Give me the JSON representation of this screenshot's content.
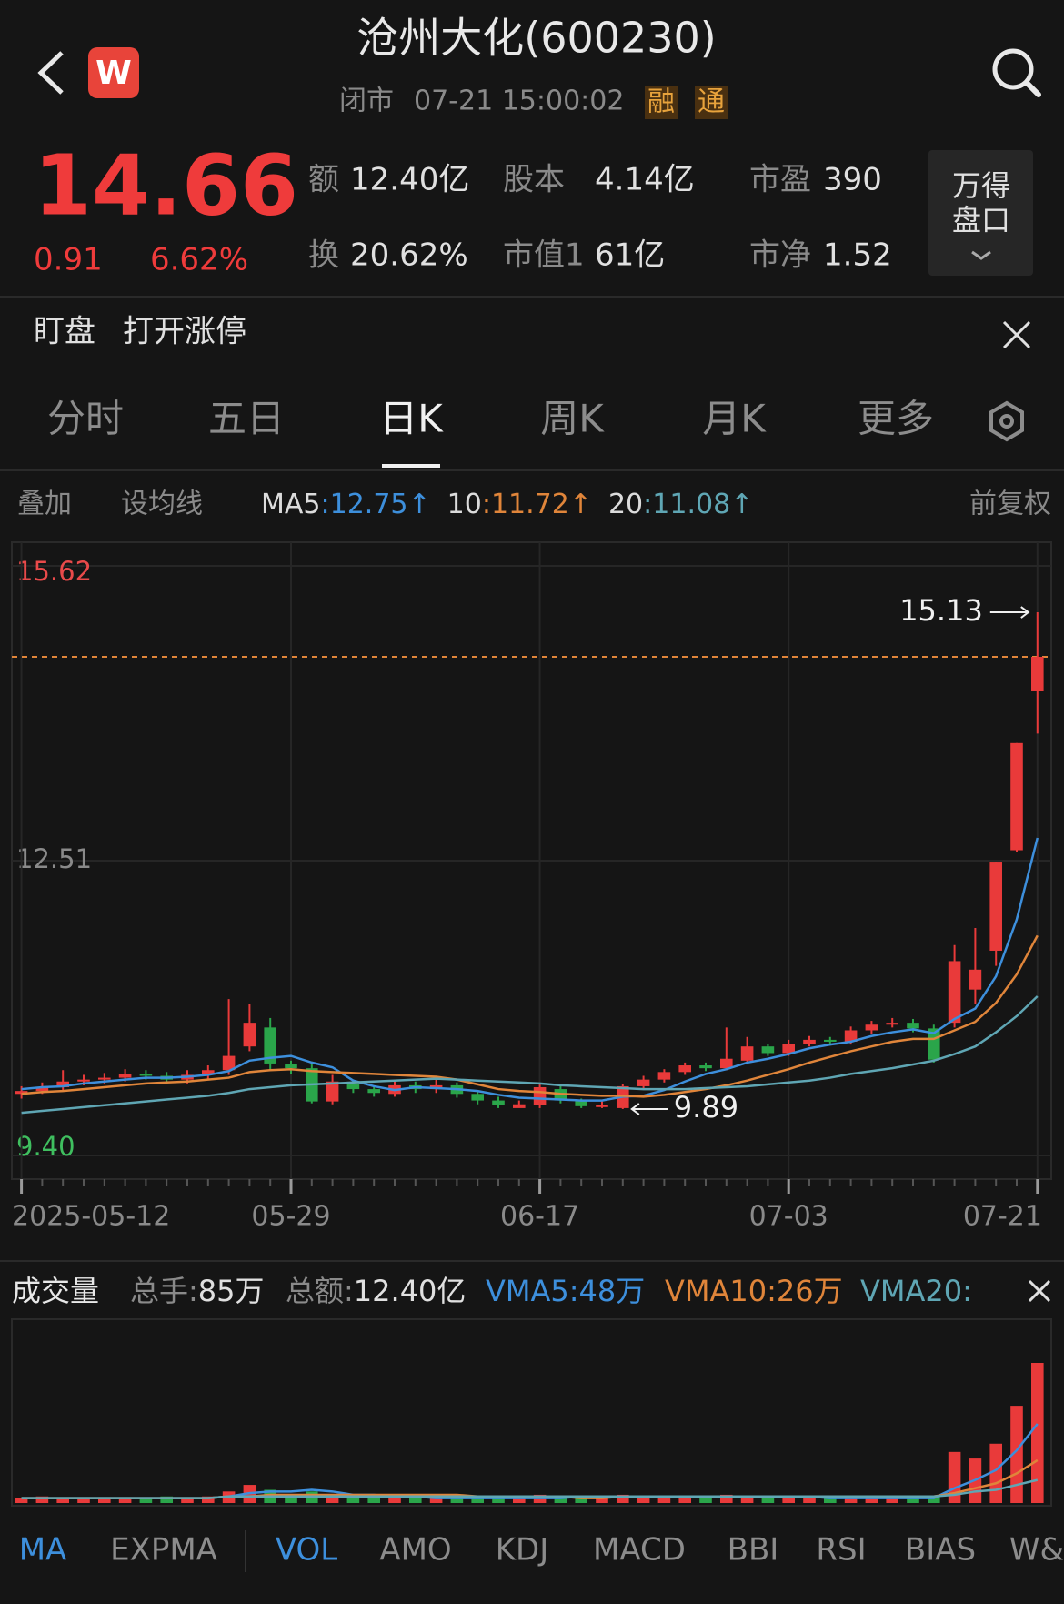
{
  "header": {
    "logo": "W",
    "title": "沧州大化(600230)",
    "status": "闭市",
    "time": "07-21 15:00:02",
    "badges": [
      "融",
      "通"
    ]
  },
  "quote": {
    "price": "14.66",
    "change": "0.91",
    "change_pct": "6.62%",
    "stats": [
      [
        "额",
        "12.40亿"
      ],
      [
        "股本",
        "4.14亿"
      ],
      [
        "市盈",
        "390"
      ],
      [
        "换",
        "20.62%"
      ],
      [
        "市值1",
        "61亿"
      ],
      [
        "市净",
        "1.52"
      ]
    ],
    "button": [
      "万得",
      "盘口"
    ]
  },
  "watch": {
    "items": [
      "盯盘",
      "打开涨停"
    ]
  },
  "tabs": {
    "items": [
      "分时",
      "五日",
      "日K",
      "周K",
      "月K",
      "更多"
    ],
    "active": 2
  },
  "toolbar": {
    "left": [
      "叠加",
      "设均线"
    ],
    "right": "前复权"
  },
  "chart_data": [
    {
      "type": "candlestick",
      "up_color": "#e93a3a",
      "down_color": "#2aa54a",
      "legend_separator": ":",
      "categories": [
        "2025-05-12",
        null,
        null,
        null,
        null,
        null,
        null,
        null,
        null,
        null,
        null,
        null,
        null,
        "05-29",
        null,
        null,
        null,
        null,
        null,
        null,
        null,
        null,
        null,
        null,
        null,
        "06-17",
        null,
        null,
        null,
        null,
        null,
        null,
        null,
        null,
        null,
        null,
        null,
        "07-03",
        null,
        null,
        null,
        null,
        null,
        null,
        null,
        null,
        null,
        null,
        null,
        "07-21"
      ],
      "open": [
        10.05,
        10.08,
        10.12,
        10.18,
        10.2,
        10.22,
        10.26,
        10.24,
        10.2,
        10.25,
        10.3,
        10.55,
        10.75,
        10.36,
        10.32,
        9.97,
        10.16,
        10.1,
        10.05,
        10.14,
        10.1,
        10.14,
        10.05,
        9.98,
        9.9,
        9.93,
        10.1,
        9.98,
        9.92,
        9.9,
        10.13,
        10.2,
        10.28,
        10.35,
        10.32,
        10.4,
        10.55,
        10.48,
        10.58,
        10.62,
        10.6,
        10.72,
        10.78,
        10.8,
        10.74,
        10.8,
        11.15,
        11.56,
        12.62,
        14.3
      ],
      "high": [
        10.13,
        10.17,
        10.3,
        10.25,
        10.27,
        10.31,
        10.3,
        10.28,
        10.3,
        10.35,
        11.05,
        11.0,
        10.85,
        10.4,
        10.38,
        10.25,
        10.2,
        10.14,
        10.18,
        10.18,
        10.2,
        10.17,
        10.08,
        10.02,
        9.98,
        10.16,
        10.14,
        10.0,
        9.97,
        10.15,
        10.24,
        10.31,
        10.38,
        10.38,
        10.75,
        10.65,
        10.58,
        10.62,
        10.66,
        10.65,
        10.76,
        10.82,
        10.85,
        10.84,
        10.78,
        11.62,
        11.8,
        12.5,
        13.75,
        15.13
      ],
      "low": [
        10.0,
        10.05,
        10.08,
        10.14,
        10.16,
        10.18,
        10.2,
        10.16,
        10.16,
        10.21,
        10.25,
        10.5,
        10.3,
        10.26,
        9.95,
        9.94,
        10.06,
        10.02,
        10.02,
        10.06,
        10.06,
        10.01,
        9.94,
        9.9,
        9.91,
        9.9,
        9.95,
        9.9,
        9.9,
        9.89,
        10.1,
        10.17,
        10.25,
        10.29,
        10.3,
        10.37,
        10.45,
        10.45,
        10.55,
        10.56,
        10.57,
        10.68,
        10.75,
        10.7,
        10.38,
        10.75,
        11.0,
        11.4,
        12.6,
        13.85
      ],
      "close": [
        10.08,
        10.12,
        10.18,
        10.2,
        10.22,
        10.26,
        10.24,
        10.2,
        10.25,
        10.3,
        10.45,
        10.8,
        10.37,
        10.32,
        9.97,
        10.18,
        10.1,
        10.06,
        10.14,
        10.1,
        10.14,
        10.05,
        9.98,
        9.93,
        9.94,
        10.12,
        9.98,
        9.92,
        9.93,
        10.13,
        10.2,
        10.28,
        10.35,
        10.32,
        10.42,
        10.55,
        10.48,
        10.58,
        10.62,
        10.6,
        10.72,
        10.78,
        10.8,
        10.74,
        10.41,
        11.45,
        11.36,
        12.5,
        13.75,
        14.66
      ],
      "series": [
        {
          "name": "MA5",
          "color": "#3d8fdc",
          "arrow": "↑",
          "values": [
            10.1,
            10.12,
            10.13,
            10.16,
            10.18,
            10.2,
            10.22,
            10.22,
            10.23,
            10.25,
            10.29,
            10.4,
            10.43,
            10.45,
            10.38,
            10.33,
            10.19,
            10.13,
            10.09,
            10.12,
            10.11,
            10.1,
            10.08,
            10.04,
            10.01,
            10.0,
            9.99,
            9.98,
            9.98,
            10.02,
            10.03,
            10.09,
            10.18,
            10.26,
            10.31,
            10.38,
            10.42,
            10.47,
            10.53,
            10.57,
            10.6,
            10.66,
            10.7,
            10.73,
            10.69,
            10.84,
            10.95,
            11.29,
            11.89,
            12.75
          ]
        },
        {
          "name": "10",
          "color": "#e0853a",
          "arrow": "↑",
          "values": [
            10.05,
            10.07,
            10.08,
            10.1,
            10.12,
            10.14,
            10.16,
            10.17,
            10.18,
            10.2,
            10.22,
            10.28,
            10.3,
            10.31,
            10.29,
            10.28,
            10.27,
            10.26,
            10.25,
            10.24,
            10.23,
            10.2,
            10.15,
            10.1,
            10.08,
            10.07,
            10.05,
            10.04,
            10.03,
            10.03,
            10.02,
            10.04,
            10.07,
            10.1,
            10.14,
            10.19,
            10.25,
            10.31,
            10.38,
            10.44,
            10.5,
            10.55,
            10.6,
            10.63,
            10.63,
            10.72,
            10.81,
            11.01,
            11.31,
            11.72
          ]
        },
        {
          "name": "20",
          "color": "#5fa6b4",
          "arrow": "↑",
          "values": [
            9.85,
            9.87,
            9.89,
            9.91,
            9.93,
            9.95,
            9.97,
            9.99,
            10.01,
            10.03,
            10.06,
            10.1,
            10.12,
            10.14,
            10.15,
            10.16,
            10.17,
            10.18,
            10.19,
            10.2,
            10.21,
            10.2,
            10.19,
            10.18,
            10.17,
            10.16,
            10.14,
            10.13,
            10.12,
            10.11,
            10.1,
            10.1,
            10.1,
            10.11,
            10.12,
            10.13,
            10.15,
            10.17,
            10.19,
            10.22,
            10.26,
            10.29,
            10.32,
            10.36,
            10.4,
            10.47,
            10.55,
            10.7,
            10.87,
            11.08
          ]
        }
      ],
      "ylim": [
        9.4,
        15.62
      ],
      "yticks": [
        15.62,
        12.51,
        {
          "value": 9.4,
          "label": "9.40"
        }
      ],
      "ytick_colors": [
        "#e94a4a",
        "#8a8a8a",
        "#3fbf5f"
      ],
      "last_price_line": {
        "color": "#e0853a",
        "dashed": true
      }
    },
    {
      "type": "bar",
      "title": "成交量",
      "series_name": "总手:",
      "unit": "万",
      "turnover_label": "总额:",
      "turnover": "12.40亿",
      "legend_separator": ":",
      "values": [
        3,
        4,
        3,
        3,
        3,
        3,
        3,
        4,
        3,
        4,
        7,
        11,
        8,
        5,
        7,
        4,
        3,
        3,
        4,
        3,
        3,
        3,
        3,
        3,
        3,
        5,
        3,
        4,
        3,
        5,
        3,
        3,
        4,
        3,
        5,
        4,
        3,
        3,
        3,
        3,
        3,
        3,
        3,
        3,
        4,
        31,
        27,
        36,
        59,
        85
      ],
      "series": [
        {
          "name": "VMA5",
          "color": "#3d8fdc",
          "values": [
            3,
            3,
            3,
            3,
            3,
            3,
            3,
            3,
            3,
            3,
            4,
            6,
            7,
            7,
            8,
            7,
            5,
            5,
            4,
            4,
            3,
            3,
            3,
            3,
            3,
            3,
            3,
            4,
            4,
            4,
            4,
            4,
            4,
            4,
            4,
            4,
            4,
            4,
            4,
            3,
            3,
            3,
            3,
            3,
            3,
            9,
            14,
            20,
            32,
            48
          ]
        },
        {
          "name": "VMA10",
          "color": "#e0853a",
          "values": [
            3,
            3,
            3,
            3,
            3,
            3,
            3,
            3,
            3,
            3,
            4,
            4,
            5,
            5,
            5,
            5,
            5,
            5,
            5,
            5,
            5,
            5,
            4,
            4,
            4,
            4,
            4,
            3,
            3,
            4,
            4,
            4,
            4,
            4,
            4,
            4,
            4,
            4,
            4,
            4,
            4,
            4,
            4,
            4,
            4,
            6,
            9,
            12,
            18,
            26
          ]
        },
        {
          "name": "VMA20",
          "color": "#5fa6b4",
          "hide_value": true,
          "values": [
            3,
            3,
            3,
            3,
            3,
            3,
            3,
            3,
            3,
            3,
            4,
            4,
            4,
            4,
            4,
            4,
            4,
            4,
            4,
            4,
            4,
            4,
            4,
            4,
            4,
            4,
            4,
            4,
            4,
            4,
            4,
            4,
            4,
            4,
            4,
            4,
            4,
            4,
            4,
            4,
            4,
            4,
            4,
            4,
            4,
            5,
            7,
            8,
            11,
            14
          ]
        }
      ]
    }
  ],
  "bottom_tabs": {
    "items": [
      "MA",
      "EXPMA",
      "VOL",
      "AMO",
      "KDJ",
      "MACD",
      "BBI",
      "RSI",
      "BIAS",
      "W&"
    ],
    "active": [
      0,
      2
    ]
  }
}
